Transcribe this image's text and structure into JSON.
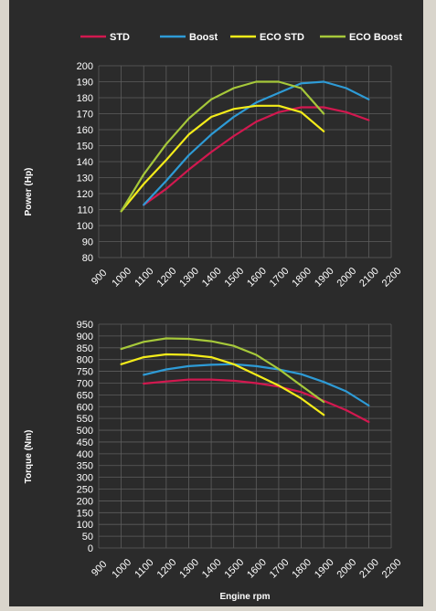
{
  "legend": {
    "position": "top",
    "entries": [
      {
        "label": "STD",
        "color": "#d2184f"
      },
      {
        "label": "Boost",
        "color": "#2e9bd6"
      },
      {
        "label": "ECO STD",
        "color": "#f4ec1a"
      },
      {
        "label": "ECO Boost",
        "color": "#a6c83a"
      }
    ]
  },
  "chart_data": [
    {
      "type": "line",
      "title": "",
      "xlabel": "",
      "ylabel": "Power (Hp)",
      "xlim": [
        900,
        2200
      ],
      "ylim": [
        80,
        200
      ],
      "x_ticks": [
        "900",
        "1000",
        "1100",
        "1200",
        "1300",
        "1400",
        "1500",
        "1600",
        "1700",
        "1800",
        "1900",
        "2000",
        "2100",
        "2200"
      ],
      "y_ticks": [
        "80",
        "90",
        "100",
        "110",
        "120",
        "130",
        "140",
        "150",
        "160",
        "170",
        "180",
        "190",
        "200"
      ],
      "grid": true,
      "series": [
        {
          "name": "STD",
          "color": "#d2184f",
          "x": [
            1100,
            1200,
            1300,
            1400,
            1500,
            1600,
            1700,
            1800,
            1900,
            2000,
            2100
          ],
          "y": [
            113,
            123,
            135,
            146,
            156,
            165,
            171,
            174,
            174,
            171,
            166
          ]
        },
        {
          "name": "Boost",
          "color": "#2e9bd6",
          "x": [
            1100,
            1200,
            1300,
            1400,
            1500,
            1600,
            1700,
            1800,
            1900,
            2000,
            2100
          ],
          "y": [
            113,
            128,
            144,
            157,
            168,
            177,
            183,
            189,
            190,
            186,
            179
          ]
        },
        {
          "name": "ECO STD",
          "color": "#f4ec1a",
          "x": [
            1000,
            1100,
            1200,
            1300,
            1400,
            1500,
            1600,
            1700,
            1800,
            1900
          ],
          "y": [
            109,
            126,
            141,
            157,
            168,
            173,
            175,
            175,
            171,
            159
          ]
        },
        {
          "name": "ECO Boost",
          "color": "#a6c83a",
          "x": [
            1000,
            1100,
            1200,
            1300,
            1400,
            1500,
            1600,
            1700,
            1800,
            1900
          ],
          "y": [
            109,
            132,
            151,
            167,
            179,
            186,
            190,
            190,
            186,
            170
          ]
        }
      ]
    },
    {
      "type": "line",
      "title": "",
      "xlabel": "Engine rpm",
      "ylabel": "Torque (Nm)",
      "xlim": [
        900,
        2200
      ],
      "ylim": [
        0,
        950
      ],
      "x_ticks": [
        "900",
        "1000",
        "1100",
        "1200",
        "1300",
        "1400",
        "1500",
        "1600",
        "1700",
        "1800",
        "1900",
        "2000",
        "2100",
        "2200"
      ],
      "y_ticks": [
        "0",
        "50",
        "100",
        "150",
        "200",
        "250",
        "300",
        "350",
        "400",
        "450",
        "500",
        "550",
        "600",
        "650",
        "700",
        "750",
        "800",
        "850",
        "900",
        "950"
      ],
      "grid": true,
      "series": [
        {
          "name": "STD",
          "color": "#d2184f",
          "x": [
            1100,
            1200,
            1300,
            1400,
            1500,
            1600,
            1700,
            1800,
            1900,
            2000,
            2100
          ],
          "y": [
            698,
            707,
            715,
            715,
            710,
            700,
            685,
            662,
            625,
            585,
            535
          ]
        },
        {
          "name": "Boost",
          "color": "#2e9bd6",
          "x": [
            1100,
            1200,
            1300,
            1400,
            1500,
            1600,
            1700,
            1800,
            1900,
            2000,
            2100
          ],
          "y": [
            735,
            758,
            772,
            778,
            780,
            772,
            758,
            738,
            705,
            665,
            605
          ]
        },
        {
          "name": "ECO STD",
          "color": "#f4ec1a",
          "x": [
            1000,
            1100,
            1200,
            1300,
            1400,
            1500,
            1600,
            1700,
            1800,
            1900
          ],
          "y": [
            780,
            810,
            822,
            820,
            810,
            780,
            735,
            690,
            635,
            565
          ]
        },
        {
          "name": "ECO Boost",
          "color": "#a6c83a",
          "x": [
            1000,
            1100,
            1200,
            1300,
            1400,
            1500,
            1600,
            1700,
            1800,
            1900
          ],
          "y": [
            845,
            875,
            890,
            888,
            878,
            858,
            820,
            760,
            690,
            620
          ]
        }
      ]
    }
  ]
}
